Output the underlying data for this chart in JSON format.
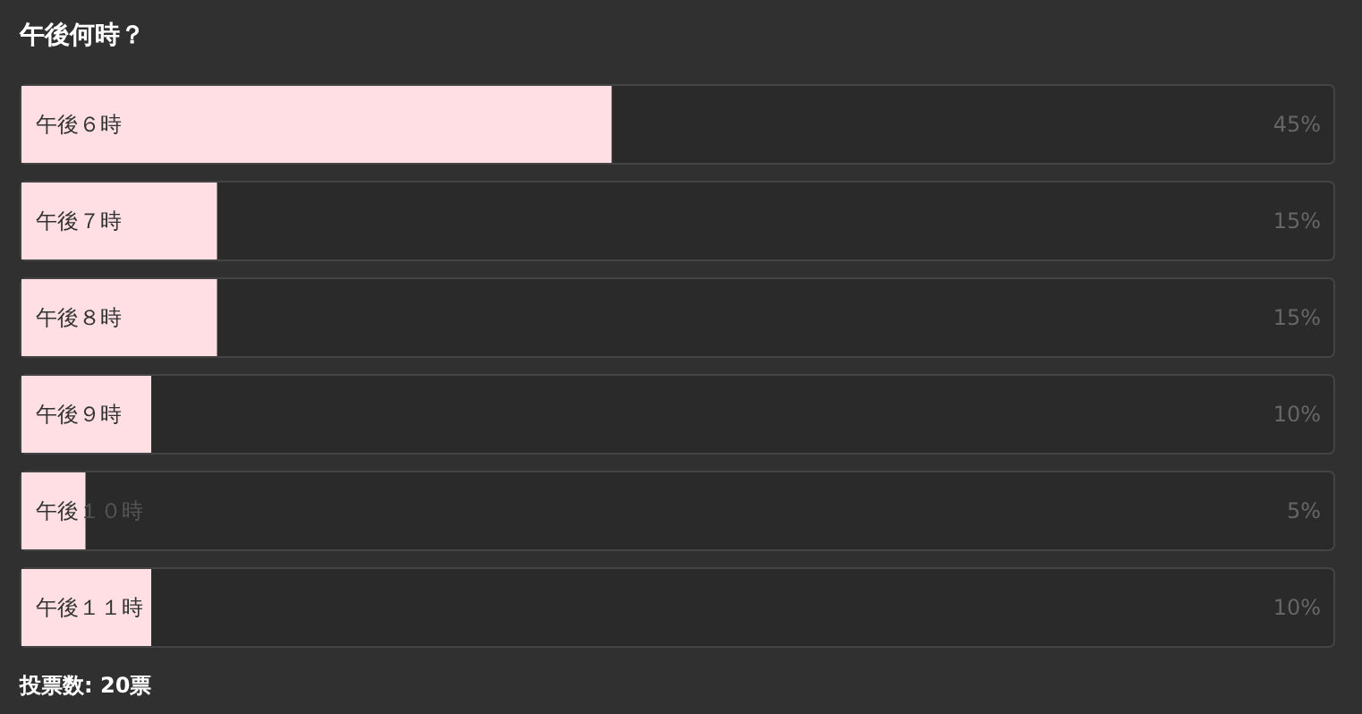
{
  "chart_data": {
    "type": "bar",
    "orientation": "horizontal",
    "title": "午後何時？",
    "categories": [
      "午後６時",
      "午後７時",
      "午後８時",
      "午後９時",
      "午後１０時",
      "午後１１時"
    ],
    "values": [
      45,
      15,
      15,
      10,
      5,
      10
    ],
    "value_labels": [
      "45%",
      "15%",
      "15%",
      "10%",
      "5%",
      "10%"
    ],
    "xlim": [
      0,
      100
    ],
    "color": "#ffdfe3",
    "annotations": [
      "投票数: 20票"
    ]
  }
}
